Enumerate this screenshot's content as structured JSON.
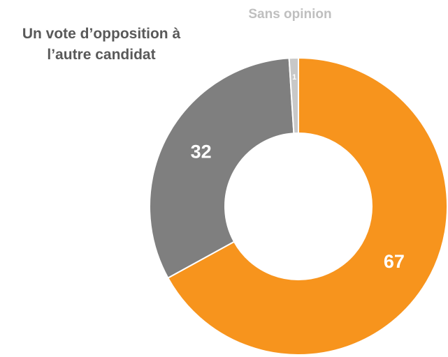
{
  "chart_data": {
    "type": "donut",
    "categories": [
      null,
      "Un vote d’opposition à l’autre candidat",
      "Sans opinion"
    ],
    "values": [
      67,
      32,
      1
    ],
    "colors": [
      "#f7941d",
      "#7f7f7f",
      "#c8c8c8"
    ]
  }
}
